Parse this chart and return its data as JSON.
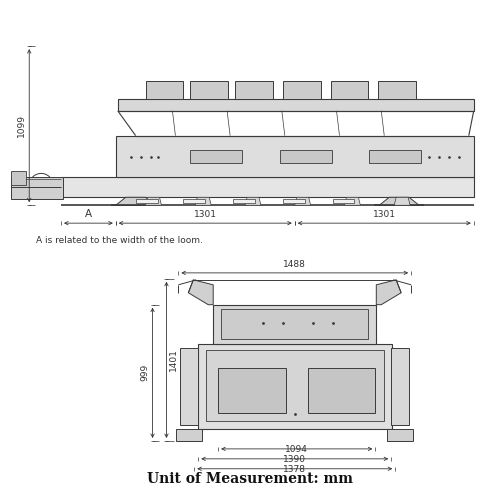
{
  "bg_color": "#ffffff",
  "lc": "#3a3a3a",
  "dc": "#333333",
  "lw": 0.6,
  "title": "Unit of Measurement: mm",
  "note": "A is related to the width of the loom.",
  "d_1099": "1099",
  "d_A": "A",
  "d_1301a": "1301",
  "d_1301b": "1301",
  "d_1488": "1488",
  "d_1401": "1401",
  "d_999": "999",
  "d_1094": "1094",
  "d_1390": "1390",
  "d_1378": "1378"
}
